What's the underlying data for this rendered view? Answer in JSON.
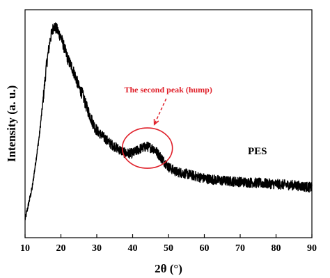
{
  "chart_data": {
    "type": "line",
    "title": "",
    "xlabel": "2θ (°)",
    "ylabel": "Intensity (a. u.)",
    "xlim": [
      10,
      90
    ],
    "ylim": [
      0,
      100
    ],
    "x_ticks": [
      "10",
      "20",
      "30",
      "40",
      "50",
      "60",
      "70",
      "80",
      "90"
    ],
    "y_ticks_shown": false,
    "grid": false,
    "legend": "none",
    "series": [
      {
        "name": "PES",
        "color": "#000000",
        "x": [
          10,
          12,
          14,
          15,
          16,
          17,
          18,
          19,
          20,
          21,
          22,
          23,
          24,
          25,
          26,
          27,
          28,
          29,
          30,
          32,
          34,
          36,
          38,
          40,
          42,
          44,
          46,
          48,
          50,
          52,
          55,
          60,
          65,
          70,
          75,
          80,
          85,
          90
        ],
        "y": [
          8,
          22,
          45,
          60,
          76,
          87,
          93,
          91,
          88,
          83,
          78,
          75,
          71,
          66,
          63,
          58,
          54,
          50,
          47,
          44,
          41,
          39,
          37,
          37,
          39,
          40,
          39,
          35,
          31,
          29,
          28,
          26,
          25,
          24.5,
          24,
          23.5,
          23,
          22
        ]
      }
    ],
    "annotations": [
      {
        "text": "The second peak (hump)",
        "color": "#e0202a",
        "target_x": 44.5,
        "target_y": 39
      }
    ]
  }
}
